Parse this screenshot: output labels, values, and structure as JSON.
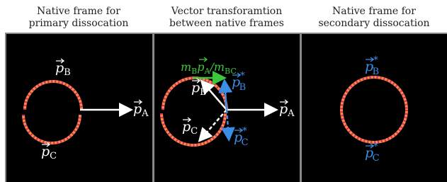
{
  "panels": [
    {
      "title": [
        "Native frame for",
        "primary dissocation"
      ],
      "labels": {
        "pB": {
          "base": "p",
          "sub": "B"
        },
        "pC": {
          "base": "p",
          "sub": "C"
        },
        "pA": {
          "base": "p",
          "sub": "A"
        }
      }
    },
    {
      "title": [
        "Vector transforamtion",
        "between native frames"
      ],
      "labels": {
        "mass": {
          "parts": [
            "m",
            "B",
            "p",
            "A",
            "/m",
            "BC"
          ]
        },
        "pB": {
          "base": "p",
          "sub": "B"
        },
        "pBstar": {
          "base": "p",
          "sub": "B",
          "sup": "*"
        },
        "pC": {
          "base": "p",
          "sub": "C"
        },
        "pCstar": {
          "base": "p",
          "sub": "C",
          "sup": "*"
        },
        "pA": {
          "base": "p",
          "sub": "A"
        }
      }
    },
    {
      "title": [
        "Native frame for",
        "secondary dissocation"
      ],
      "labels": {
        "pBstar": {
          "base": "p",
          "sub": "B",
          "sup": "*"
        },
        "pCstar": {
          "base": "p",
          "sub": "C",
          "sup": "*"
        }
      }
    }
  ]
}
